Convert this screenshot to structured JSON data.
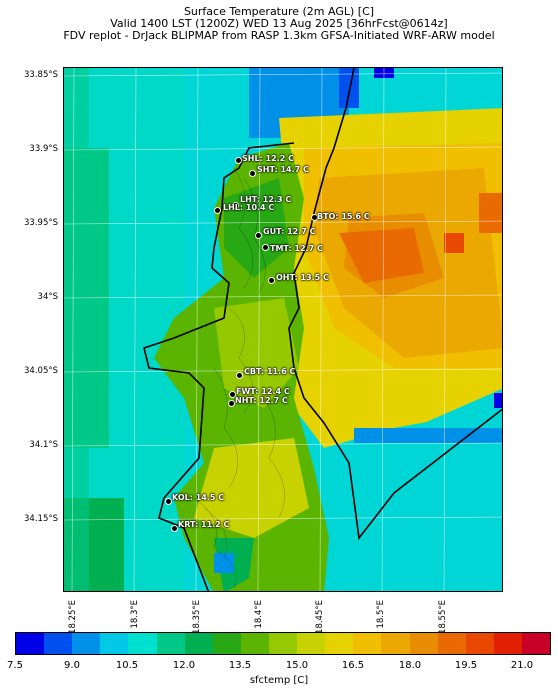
{
  "title": {
    "line1": "Surface Temperature (2m AGL) [C]",
    "line2": "Valid 1400 LST (1200Z) WED 13 Aug 2025 [36hrFcst@0614z]",
    "line3": "FDV replot - DrJack BLIPMAP from RASP 1.3km GFSA-Initiated WRF-ARW model"
  },
  "axes": {
    "lat_labels": [
      "33.85°S",
      "33.9°S",
      "33.95°S",
      "34°S",
      "34.05°S",
      "34.1°S",
      "34.15°S"
    ],
    "lon_labels": [
      "18.25°E",
      "18.3°E",
      "18.35°E",
      "18.4°E",
      "18.45°E",
      "18.5°E",
      "18.55°E"
    ]
  },
  "stations": [
    {
      "label": "SHL: 12.2 C"
    },
    {
      "label": "SHT: 14.7 C"
    },
    {
      "label": "LHT: 12.3 C"
    },
    {
      "label": "LHL: 10.4 C"
    },
    {
      "label": "BTO: 15.6 C"
    },
    {
      "label": "GUT: 12.7 C"
    },
    {
      "label": "TMT: 12.7 C"
    },
    {
      "label": "OHT: 13.5 C"
    },
    {
      "label": "CBT: 11.6 C"
    },
    {
      "label": "FWT: 12.4 C"
    },
    {
      "label": "NHT: 12.7 C"
    },
    {
      "label": "KOL: 14.5 C"
    },
    {
      "label": "KRT: 11.2 C"
    }
  ],
  "colorbar": {
    "title": "sfctemp [C]",
    "tick_labels": [
      "7.5",
      "9.0",
      "10.5",
      "12.0",
      "13.5",
      "15.0",
      "16.5",
      "18.0",
      "19.5",
      "21.0"
    ],
    "colors": [
      "#0000e6",
      "#0050f0",
      "#0090e8",
      "#00c8e6",
      "#00e0d0",
      "#00c887",
      "#00b050",
      "#28a814",
      "#5ab400",
      "#96c800",
      "#c8d200",
      "#e6d200",
      "#f0c000",
      "#eaa800",
      "#e88c00",
      "#e86a00",
      "#e84800",
      "#e02000",
      "#c80028"
    ]
  },
  "colors": {
    "coastline": "#000000"
  }
}
